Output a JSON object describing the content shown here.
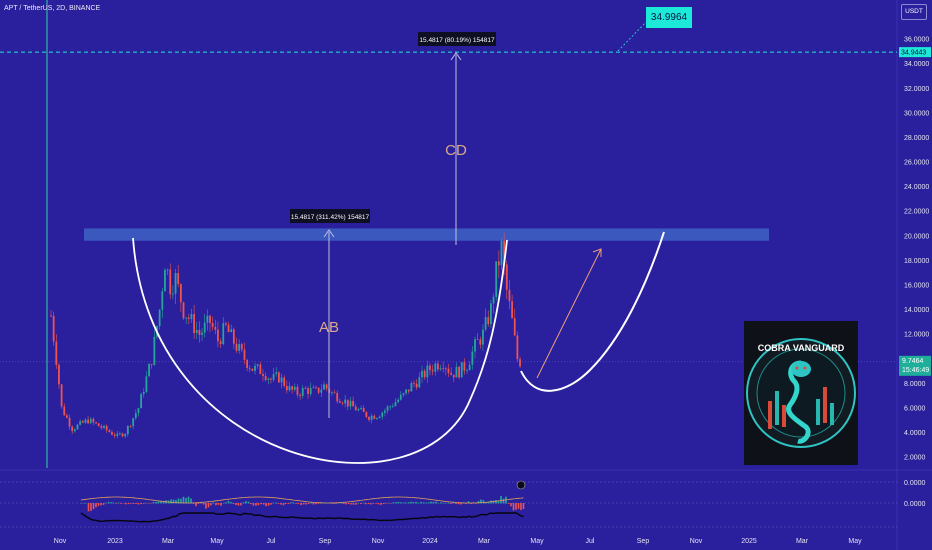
{
  "header": {
    "symbol": "APT / TetherUS, 2D, BINANCE",
    "currency": "USDT"
  },
  "target_label": "34.9964",
  "logo": {
    "text": "COBRA VANGUARD"
  },
  "chart_data": {
    "type": "candlestick",
    "ylim": [
      1,
      37
    ],
    "y_ticks": [
      "36.0000",
      "34.0000",
      "32.0000",
      "30.0000",
      "28.0000",
      "26.0000",
      "24.0000",
      "22.0000",
      "20.0000",
      "18.0000",
      "16.0000",
      "14.0000",
      "12.0000",
      "10.0000",
      "8.0000",
      "6.0000",
      "4.0000",
      "2.0000"
    ],
    "x_ticks": [
      "Nov",
      "2023",
      "Mar",
      "May",
      "Jul",
      "Sep",
      "Nov",
      "2024",
      "Mar",
      "May",
      "Jul",
      "Sep",
      "Nov",
      "2025",
      "Mar",
      "May"
    ],
    "target_line": {
      "value": 34.9443,
      "label": "34.9443"
    },
    "current_price": {
      "value": 9.7464,
      "label": "9.7464",
      "countdown": "15:46:49"
    },
    "resistance_zone": [
      19.6,
      20.6
    ],
    "annotations": {
      "ab_label": "AB",
      "cd_label": "CD",
      "ab_measure": "15.4817 (311.42%) 154817",
      "cd_measure": "15.4817 (80.19%) 154817"
    },
    "oscillator_ticks": [
      "0.0000",
      "0.0000"
    ],
    "price_anchors": [
      [
        0,
        13.5
      ],
      [
        2,
        10
      ],
      [
        4,
        6
      ],
      [
        8,
        4.3
      ],
      [
        14,
        5
      ],
      [
        20,
        4.3
      ],
      [
        25,
        3.7
      ],
      [
        28,
        4
      ],
      [
        33,
        6
      ],
      [
        38,
        10
      ],
      [
        41,
        14
      ],
      [
        43,
        18
      ],
      [
        45,
        16
      ],
      [
        47,
        16.5
      ],
      [
        50,
        14
      ],
      [
        53,
        13
      ],
      [
        56,
        12
      ],
      [
        60,
        13
      ],
      [
        63,
        11.5
      ],
      [
        66,
        12.5
      ],
      [
        70,
        11
      ],
      [
        73,
        10
      ],
      [
        76,
        9.2
      ],
      [
        80,
        9
      ],
      [
        83,
        8.3
      ],
      [
        86,
        8.5
      ],
      [
        90,
        7.5
      ],
      [
        93,
        7.2
      ],
      [
        96,
        7.5
      ],
      [
        100,
        7.3
      ],
      [
        103,
        7.8
      ],
      [
        106,
        7.2
      ],
      [
        110,
        6.7
      ],
      [
        113,
        6.2
      ],
      [
        116,
        5.8
      ],
      [
        120,
        5.3
      ],
      [
        123,
        5.4
      ],
      [
        126,
        5.8
      ],
      [
        130,
        6.5
      ],
      [
        133,
        7
      ],
      [
        136,
        7.8
      ],
      [
        139,
        8.3
      ],
      [
        142,
        9
      ],
      [
        145,
        9.5
      ],
      [
        148,
        9.8
      ],
      [
        151,
        8.8
      ],
      [
        154,
        9
      ],
      [
        157,
        9.5
      ],
      [
        160,
        11
      ],
      [
        163,
        12
      ],
      [
        166,
        14
      ],
      [
        168,
        17
      ],
      [
        170,
        19
      ],
      [
        172,
        15.5
      ],
      [
        174,
        13
      ],
      [
        176,
        10
      ],
      [
        177,
        9.8
      ]
    ]
  }
}
